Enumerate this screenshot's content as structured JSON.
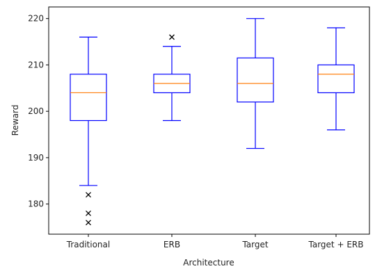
{
  "chart_data": {
    "type": "box",
    "xlabel": "Architecture",
    "ylabel": "Reward",
    "categories": [
      "Traditional",
      "ERB",
      "Target",
      "Target + ERB"
    ],
    "ylim": [
      173.5,
      222.5
    ],
    "yticks": [
      180,
      190,
      200,
      210,
      220
    ],
    "boxes": [
      {
        "category": "Traditional",
        "whisker_low": 184,
        "q1": 198,
        "median": 204,
        "q3": 208,
        "whisker_high": 216,
        "outliers": [
          182,
          178,
          176
        ]
      },
      {
        "category": "ERB",
        "whisker_low": 198,
        "q1": 204,
        "median": 206,
        "q3": 208,
        "whisker_high": 214,
        "outliers": [
          216
        ]
      },
      {
        "category": "Target",
        "whisker_low": 192,
        "q1": 202,
        "median": 206,
        "q3": 211.5,
        "whisker_high": 220,
        "outliers": []
      },
      {
        "category": "Target + ERB",
        "whisker_low": 196,
        "q1": 204,
        "median": 208,
        "q3": 210,
        "whisker_high": 218,
        "outliers": []
      }
    ],
    "grid": false,
    "colors": {
      "box": "#0000ff",
      "median": "#ff7f0e",
      "outlier": "#000000",
      "axis": "#000000"
    }
  }
}
